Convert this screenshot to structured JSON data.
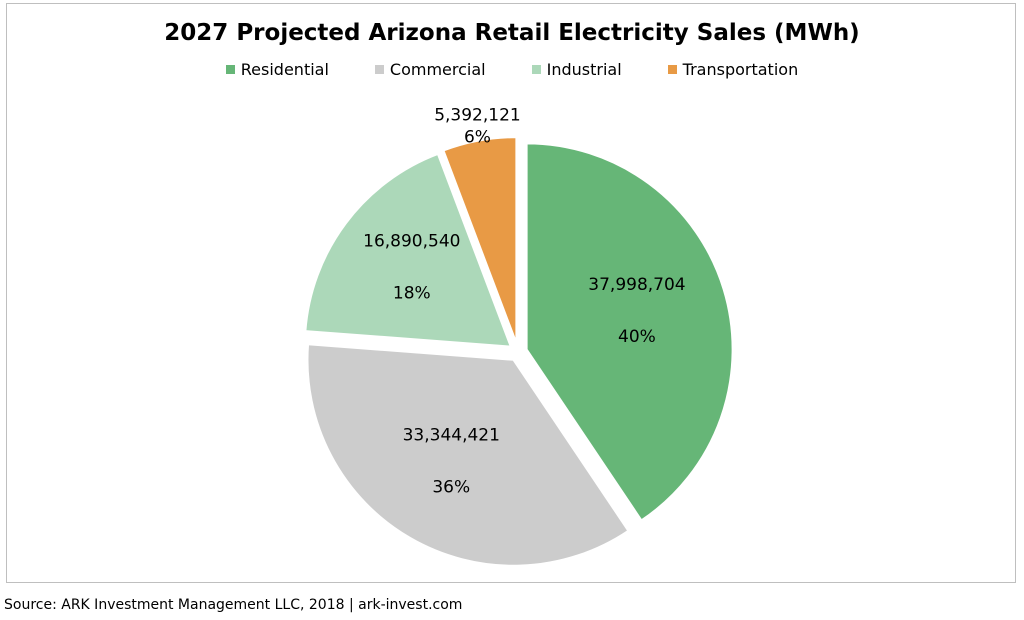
{
  "chart_data": {
    "type": "pie",
    "title": "2027 Projected Arizona Retail Electricity Sales (MWh)",
    "legend_position": "top",
    "slices": [
      {
        "name": "Residential",
        "value": 37998704,
        "value_label": "37,998,704",
        "percent_label": "40%",
        "color": "#66b677"
      },
      {
        "name": "Commercial",
        "value": 33344421,
        "value_label": "33,344,421",
        "percent_label": "36%",
        "color": "#cccccc"
      },
      {
        "name": "Industrial",
        "value": 16890540,
        "value_label": "16,890,540",
        "percent_label": "18%",
        "color": "#acd8b9"
      },
      {
        "name": "Transportation",
        "value": 5392121,
        "value_label": "5,392,121",
        "percent_label": "6%",
        "color": "#e89a45"
      }
    ]
  },
  "footer": {
    "source": "Source: ARK Investment Management LLC, 2018 | ark-invest.com"
  }
}
